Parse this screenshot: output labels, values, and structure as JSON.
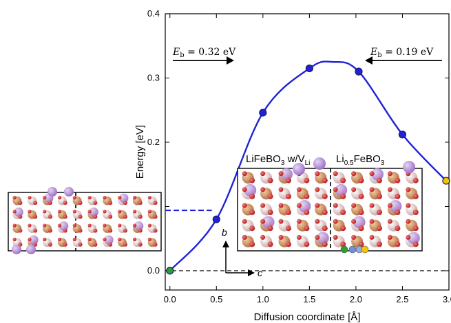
{
  "chart_data": {
    "type": "line",
    "xlabel": "Diffusion coordinate [Å]",
    "ylabel": "Energy [eV]",
    "xlim": [
      -0.05,
      3.0
    ],
    "ylim": [
      -0.03,
      0.4
    ],
    "x_ticks": [
      "0.0",
      "0.5",
      "1.0",
      "1.5",
      "2.0",
      "2.5",
      "3.0"
    ],
    "y_ticks": [
      "0.0",
      "0.1",
      "0.2",
      "0.3",
      "0.4"
    ],
    "x_tick_values": [
      0.0,
      0.5,
      1.0,
      1.5,
      2.0,
      2.5,
      3.0
    ],
    "y_tick_values": [
      0.0,
      0.1,
      0.2,
      0.3,
      0.4
    ],
    "grid": false,
    "series": [
      {
        "color": "#1f22d6",
        "x": [
          0.0,
          0.5,
          1.0,
          1.5,
          2.03,
          2.5,
          2.97
        ],
        "y": [
          0.0,
          0.08,
          0.246,
          0.315,
          0.31,
          0.212,
          0.14
        ]
      }
    ],
    "curve_peak": {
      "x": 1.75,
      "y": 0.325
    },
    "endpoint_colors": {
      "start": "#2ca02c",
      "end": "#f5c400"
    },
    "reference_lines": [
      {
        "style": "dashed",
        "color": "#000000",
        "y": 0.0,
        "x_from": -0.05,
        "x_to": 3.0
      },
      {
        "style": "dashed",
        "color": "#1f22d6",
        "y": 0.094,
        "x_from": -0.05,
        "x_to": 0.45
      }
    ],
    "annotations": {
      "left_barrier": {
        "symbol": "E",
        "subscript": "b",
        "text": " = 0.32 eV",
        "arrow": "right"
      },
      "right_barrier": {
        "symbol": "E",
        "subscript": "b",
        "text": " = 0.19 eV",
        "arrow": "left"
      },
      "phase_left": {
        "base": "LiFeBO",
        "sub1": "3",
        "mid": " w/V",
        "sub2": "Li"
      },
      "phase_right": {
        "base": "Li",
        "sub1": "0.5",
        "mid": "FeBO",
        "sub2": "3"
      },
      "axis_b": "b",
      "axis_c": "c"
    },
    "atom_colors": {
      "fe": "#c8895a",
      "li": "#b88ed8",
      "o": "#d42a2a",
      "b": "#e6c6c6"
    }
  }
}
